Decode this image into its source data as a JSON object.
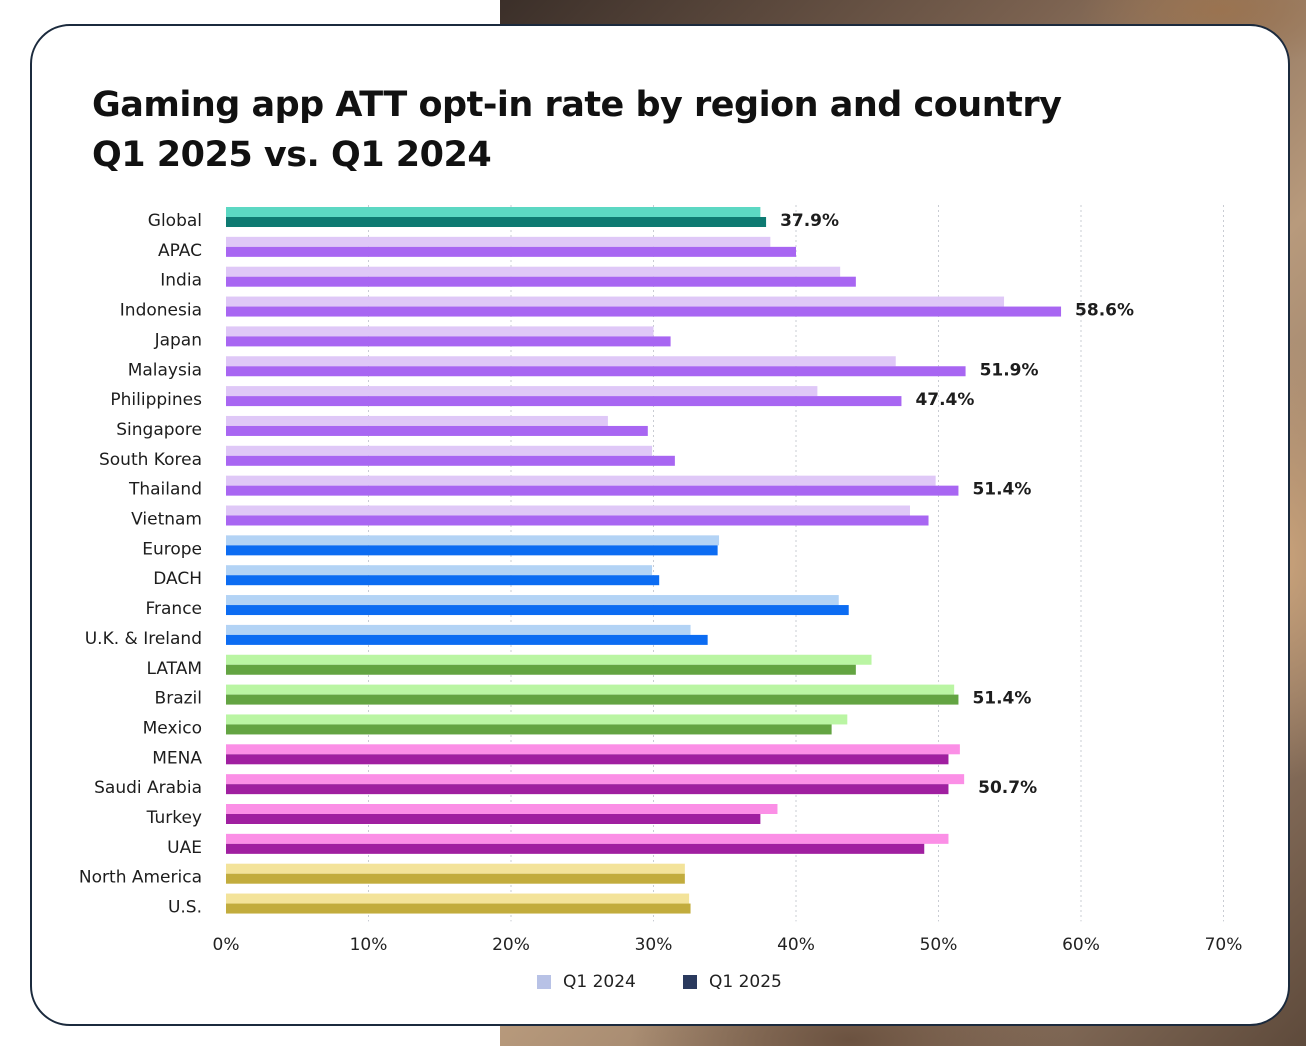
{
  "title_lines": [
    "Gaming app ATT opt-in rate by region and country",
    "Q1 2025 vs. Q1 2024"
  ],
  "chart_data": {
    "type": "bar",
    "orientation": "horizontal",
    "xlim": [
      0,
      70
    ],
    "x_ticks": [
      "0%",
      "10%",
      "20%",
      "30%",
      "40%",
      "50%",
      "60%",
      "70%"
    ],
    "x_tick_values": [
      0,
      10,
      20,
      30,
      40,
      50,
      60,
      70
    ],
    "grid": "vertical dotted",
    "legend_placement": "bottom-center",
    "categories": [
      "Global",
      "APAC",
      "India",
      "Indonesia",
      "Japan",
      "Malaysia",
      "Philippines",
      "Singapore",
      "South Korea",
      "Thailand",
      "Vietnam",
      "Europe",
      "DACH",
      "France",
      "U.K. & Ireland",
      "LATAM",
      "Brazil",
      "Mexico",
      "MENA",
      "Saudi Arabia",
      "Turkey",
      "UAE",
      "North America",
      "U.S."
    ],
    "groups": [
      "Global",
      "APAC",
      "APAC",
      "APAC",
      "APAC",
      "APAC",
      "APAC",
      "APAC",
      "APAC",
      "APAC",
      "APAC",
      "Europe",
      "Europe",
      "Europe",
      "Europe",
      "LATAM",
      "LATAM",
      "LATAM",
      "MENA",
      "MENA",
      "MENA",
      "MENA",
      "North America",
      "North America"
    ],
    "series": [
      {
        "name": "Q1 2024",
        "legend_color": "#b8c2e6",
        "values": [
          37.5,
          38.2,
          43.1,
          54.6,
          30.0,
          47.0,
          41.5,
          26.8,
          29.9,
          49.8,
          48.0,
          34.6,
          29.9,
          43.0,
          32.6,
          45.3,
          51.1,
          43.6,
          51.5,
          51.8,
          38.7,
          50.7,
          32.2,
          32.5
        ],
        "group_colors": {
          "Global": "#5cd8c3",
          "APAC": "#dfc8f7",
          "Europe": "#b3d3f5",
          "LATAM": "#baf5a3",
          "MENA": "#fb8fe6",
          "North America": "#f3e39a"
        }
      },
      {
        "name": "Q1 2025",
        "legend_color": "#2a3a5e",
        "values": [
          37.9,
          40.0,
          44.2,
          58.6,
          31.2,
          51.9,
          47.4,
          29.6,
          31.5,
          51.4,
          49.3,
          34.5,
          30.4,
          43.7,
          33.8,
          44.2,
          51.4,
          42.5,
          50.7,
          50.7,
          37.5,
          49.0,
          32.2,
          32.6
        ],
        "labels": [
          "37.9%",
          null,
          null,
          "58.6%",
          null,
          "51.9%",
          "47.4%",
          null,
          null,
          "51.4%",
          null,
          null,
          null,
          null,
          null,
          null,
          "51.4%",
          null,
          null,
          "50.7%",
          null,
          null,
          null,
          null
        ],
        "group_colors": {
          "Global": "#0e7a72",
          "APAC": "#a866f2",
          "Europe": "#0c6cf2",
          "LATAM": "#63a442",
          "MENA": "#a01fa0",
          "North America": "#c2ac3d"
        }
      }
    ]
  }
}
